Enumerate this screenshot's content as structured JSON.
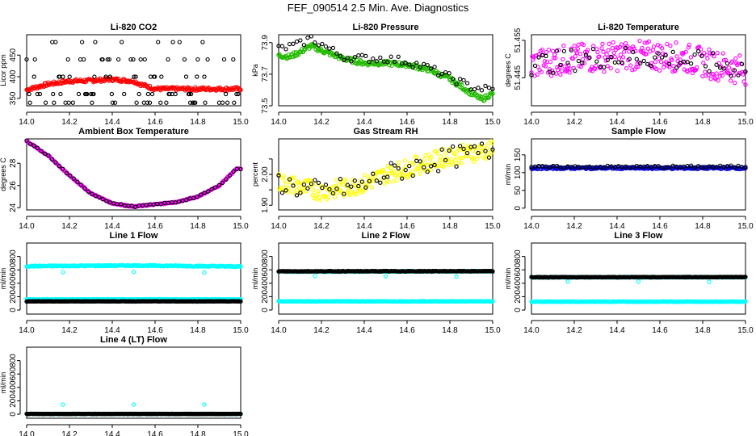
{
  "page_title": "FEF_090514  2.5 Min. Ave. Diagnostics",
  "chart_data": [
    {
      "type": "scatter",
      "title": "Li-820 CO2",
      "ylabel": "Licor ppm",
      "ylim": [
        333,
        497
      ],
      "yticks": [
        350,
        400,
        450
      ],
      "xlim": [
        14.0,
        15.0
      ],
      "xticks": [
        "14.0",
        "14.2",
        "14.4",
        "14.6",
        "14.8",
        "15.0"
      ],
      "series": [
        {
          "color": "#ff0000",
          "anchors": [
            [
              14.0,
              370
            ],
            [
              14.1,
              383
            ],
            [
              14.2,
              390
            ],
            [
              14.3,
              391
            ],
            [
              14.4,
              394
            ],
            [
              14.5,
              390
            ],
            [
              14.53,
              383
            ],
            [
              14.6,
              372
            ],
            [
              15.0,
              372
            ]
          ],
          "scatter": 4
        },
        {
          "color": "#000000",
          "anchors": [
            [
              14.0,
              370
            ],
            [
              15.0,
              370
            ]
          ],
          "discrete": [
            340,
            360,
            400,
            440,
            480
          ]
        }
      ]
    },
    {
      "type": "scatter",
      "title": "Li-820 Pressure",
      "ylabel": "kPa",
      "ylim": [
        73.5,
        73.95
      ],
      "yticks": [
        73.5,
        73.7,
        73.9
      ],
      "xlim": [
        14.0,
        15.0
      ],
      "xticks": [
        "14.0",
        "14.2",
        "14.4",
        "14.6",
        "14.8",
        "15.0"
      ],
      "series": [
        {
          "color": "#22bb00",
          "anchors": [
            [
              14.0,
              73.82
            ],
            [
              14.05,
              73.81
            ],
            [
              14.1,
              73.84
            ],
            [
              14.15,
              73.88
            ],
            [
              14.2,
              73.85
            ],
            [
              14.3,
              73.8
            ],
            [
              14.4,
              73.77
            ],
            [
              14.5,
              73.77
            ],
            [
              14.6,
              73.76
            ],
            [
              14.7,
              73.73
            ],
            [
              14.8,
              73.67
            ],
            [
              14.9,
              73.58
            ],
            [
              14.95,
              73.54
            ],
            [
              15.0,
              73.58
            ]
          ],
          "scatter": 0.015
        },
        {
          "color": "#000000",
          "anchors": [
            [
              14.0,
              73.86
            ],
            [
              14.1,
              73.89
            ],
            [
              14.15,
              73.93
            ],
            [
              14.2,
              73.89
            ],
            [
              14.3,
              73.81
            ],
            [
              14.4,
              73.8
            ],
            [
              14.5,
              73.8
            ],
            [
              14.6,
              73.78
            ],
            [
              14.7,
              73.74
            ],
            [
              14.8,
              73.68
            ],
            [
              14.9,
              73.62
            ],
            [
              15.0,
              73.6
            ]
          ],
          "scatter": 0.025,
          "sparse": true
        }
      ]
    },
    {
      "type": "scatter",
      "title": "Li-820 Temperature",
      "ylabel": "degrees C",
      "ylim": [
        51.4375,
        51.4565
      ],
      "yticks": [
        51.445,
        51.455
      ],
      "ytick_labels": [
        "51.445",
        "51.455"
      ],
      "xlim": [
        14.0,
        15.0
      ],
      "xticks": [
        "14.0",
        "14.2",
        "14.4",
        "14.6",
        "14.8",
        "15.0"
      ],
      "series": [
        {
          "color": "#ff00ff",
          "anchors": [
            [
              14.0,
              51.4485
            ],
            [
              14.1,
              51.4495
            ],
            [
              14.3,
              51.4505
            ],
            [
              14.5,
              51.451
            ],
            [
              14.7,
              51.4505
            ],
            [
              14.85,
              51.4485
            ],
            [
              15.0,
              51.447
            ]
          ],
          "scatter": 0.004
        },
        {
          "color": "#000000",
          "anchors": [
            [
              14.0,
              51.4485
            ],
            [
              14.3,
              51.4505
            ],
            [
              14.6,
              51.4505
            ],
            [
              15.0,
              51.4475
            ]
          ],
          "scatter": 0.003,
          "sparse": true
        }
      ]
    },
    {
      "type": "scatter",
      "title": "Ambient Box Temperature",
      "ylabel": "degrees C",
      "ylim": [
        23.8,
        30.2
      ],
      "yticks": [
        24,
        26,
        28
      ],
      "xlim": [
        14.0,
        15.0
      ],
      "xticks": [
        "14.0",
        "14.2",
        "14.4",
        "14.6",
        "14.8",
        "15.0"
      ],
      "series": [
        {
          "color": "#ff00ff",
          "anchors": [
            [
              14.0,
              30.0
            ],
            [
              14.1,
              28.7
            ],
            [
              14.2,
              26.9
            ],
            [
              14.3,
              25.3
            ],
            [
              14.4,
              24.4
            ],
            [
              14.5,
              24.1
            ],
            [
              14.6,
              24.3
            ],
            [
              14.7,
              24.5
            ],
            [
              14.8,
              25.0
            ],
            [
              14.9,
              26.0
            ],
            [
              14.98,
              27.5
            ]
          ],
          "scatter": 0.05
        },
        {
          "color": "#000000",
          "anchors": [
            [
              14.0,
              30.0
            ],
            [
              14.1,
              28.7
            ],
            [
              14.2,
              26.9
            ],
            [
              14.3,
              25.3
            ],
            [
              14.4,
              24.4
            ],
            [
              14.5,
              24.1
            ],
            [
              14.6,
              24.3
            ],
            [
              14.7,
              24.5
            ],
            [
              14.8,
              25.0
            ],
            [
              14.9,
              26.0
            ],
            [
              14.98,
              27.5
            ]
          ],
          "scatter": 0.05,
          "sparse": true
        }
      ]
    },
    {
      "type": "scatter",
      "title": "Gas Stream RH",
      "ylabel": "percent",
      "ylim": [
        1.885,
        2.115
      ],
      "yticks": [
        1.9,
        1.95,
        2.0,
        2.05
      ],
      "ytick_labels": [
        "1.90",
        "",
        "2.00",
        ""
      ],
      "xlim": [
        14.0,
        15.0
      ],
      "xticks": [
        "14.0",
        "14.2",
        "14.4",
        "14.6",
        "14.8",
        "15.0"
      ],
      "series": [
        {
          "color": "#ffff00",
          "anchors": [
            [
              14.0,
              1.975
            ],
            [
              14.1,
              1.96
            ],
            [
              14.2,
              1.945
            ],
            [
              14.3,
              1.955
            ],
            [
              14.4,
              1.97
            ],
            [
              14.5,
              2.0
            ],
            [
              14.6,
              2.02
            ],
            [
              14.7,
              2.04
            ],
            [
              14.8,
              2.06
            ],
            [
              14.9,
              2.07
            ],
            [
              15.0,
              2.08
            ]
          ],
          "scatter": 0.03
        },
        {
          "color": "#000000",
          "anchors": [
            [
              14.0,
              1.975
            ],
            [
              14.1,
              1.955
            ],
            [
              14.2,
              1.945
            ],
            [
              14.3,
              1.955
            ],
            [
              14.4,
              1.965
            ],
            [
              14.5,
              2.0
            ],
            [
              14.6,
              2.02
            ],
            [
              14.7,
              2.035
            ],
            [
              14.8,
              2.055
            ],
            [
              14.9,
              2.065
            ],
            [
              15.0,
              2.08
            ]
          ],
          "scatter": 0.035,
          "sparse": true
        }
      ]
    },
    {
      "type": "scatter",
      "title": "Sample Flow",
      "ylabel": "ml/min",
      "ylim": [
        -5,
        195
      ],
      "yticks": [
        0,
        50,
        100,
        150
      ],
      "xlim": [
        14.0,
        15.0
      ],
      "xticks": [
        "14.0",
        "14.2",
        "14.4",
        "14.6",
        "14.8",
        "15.0"
      ],
      "series": [
        {
          "color": "#0000cc",
          "anchors": [
            [
              14.0,
              113
            ],
            [
              15.0,
              113
            ]
          ],
          "scatter": 3
        },
        {
          "color": "#000000",
          "anchors": [
            [
              14.0,
              116
            ],
            [
              15.0,
              117
            ]
          ],
          "scatter": 3,
          "sparse": true
        }
      ]
    },
    {
      "type": "scatter",
      "title": "Line 1 Flow",
      "ylabel": "ml/min",
      "ylim": [
        -60,
        1000
      ],
      "yticks": [
        0,
        200,
        400,
        600,
        800
      ],
      "xlim": [
        14.0,
        15.0
      ],
      "xticks": [
        "14.0",
        "14.2",
        "14.4",
        "14.6",
        "14.8",
        "15.0"
      ],
      "series": [
        {
          "color": "#00ffff",
          "anchors": [
            [
              14.0,
              655
            ],
            [
              14.5,
              665
            ],
            [
              15.0,
              650
            ]
          ],
          "scatter": 8,
          "outliers": [
            [
              14.17,
              565
            ],
            [
              14.5,
              570
            ],
            [
              14.83,
              560
            ]
          ]
        },
        {
          "color": "#00ffff",
          "anchors": [
            [
              14.0,
              160
            ],
            [
              15.0,
              160
            ]
          ],
          "scatter": 4
        },
        {
          "color": "#000000",
          "anchors": [
            [
              14.0,
              130
            ],
            [
              15.0,
              130
            ]
          ],
          "scatter": 3
        }
      ]
    },
    {
      "type": "scatter",
      "title": "Line 2 Flow",
      "ylabel": "ml/min",
      "ylim": [
        -60,
        1000
      ],
      "yticks": [
        0,
        200,
        400,
        600,
        800
      ],
      "xlim": [
        14.0,
        15.0
      ],
      "xticks": [
        "14.0",
        "14.2",
        "14.4",
        "14.6",
        "14.8",
        "15.0"
      ],
      "series": [
        {
          "color": "#00ffff",
          "anchors": [
            [
              14.0,
              575
            ],
            [
              15.0,
              578
            ]
          ],
          "scatter": 5,
          "outliers": [
            [
              14.17,
              505
            ],
            [
              14.5,
              505
            ],
            [
              14.83,
              500
            ]
          ]
        },
        {
          "color": "#000000",
          "anchors": [
            [
              14.0,
              578
            ],
            [
              15.0,
              580
            ]
          ],
          "scatter": 4
        },
        {
          "color": "#00ffff",
          "anchors": [
            [
              14.0,
              130
            ],
            [
              15.0,
              130
            ]
          ],
          "scatter": 4
        }
      ]
    },
    {
      "type": "scatter",
      "title": "Line 3 Flow",
      "ylabel": "ml/min",
      "ylim": [
        -60,
        1000
      ],
      "yticks": [
        0,
        200,
        400,
        600,
        800
      ],
      "xlim": [
        14.0,
        15.0
      ],
      "xticks": [
        "14.0",
        "14.2",
        "14.4",
        "14.6",
        "14.8",
        "15.0"
      ],
      "series": [
        {
          "color": "#00ffff",
          "anchors": [
            [
              14.0,
              488
            ],
            [
              15.0,
              490
            ]
          ],
          "scatter": 5,
          "outliers": [
            [
              14.17,
              425
            ],
            [
              14.5,
              425
            ],
            [
              14.83,
              420
            ]
          ]
        },
        {
          "color": "#000000",
          "anchors": [
            [
              14.0,
              490
            ],
            [
              15.0,
              492
            ]
          ],
          "scatter": 4
        },
        {
          "color": "#00ffff",
          "anchors": [
            [
              14.0,
              125
            ],
            [
              15.0,
              125
            ]
          ],
          "scatter": 4
        }
      ]
    },
    {
      "type": "scatter",
      "title": "Line 4 (LT) Flow",
      "ylabel": "ml/min",
      "ylim": [
        -60,
        1000
      ],
      "yticks": [
        0,
        200,
        400,
        600,
        800
      ],
      "xlim": [
        14.0,
        15.0
      ],
      "xticks": [
        "14.0",
        "14.2",
        "14.4",
        "14.6",
        "14.8",
        "15.0"
      ],
      "series": [
        {
          "color": "#00ffff",
          "anchors": [
            [
              14.0,
              5
            ],
            [
              15.0,
              5
            ]
          ],
          "scatter": 2,
          "outliers": [
            [
              14.17,
              145
            ],
            [
              14.5,
              145
            ],
            [
              14.83,
              145
            ]
          ]
        },
        {
          "color": "#000000",
          "anchors": [
            [
              14.0,
              5
            ],
            [
              15.0,
              5
            ]
          ],
          "scatter": 2
        }
      ]
    }
  ]
}
